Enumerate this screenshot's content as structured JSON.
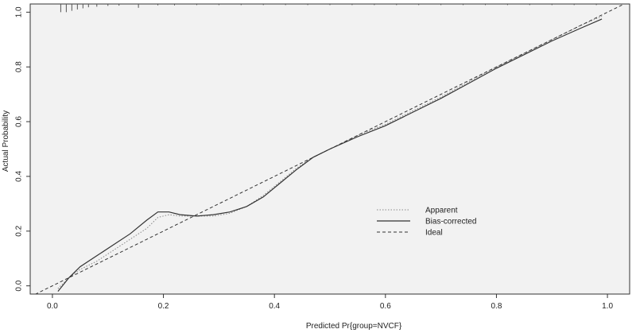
{
  "chart_data": {
    "type": "line",
    "title": "",
    "xlabel": "Predicted Pr{group=NVCF}",
    "ylabel": "Actual Probability",
    "xlim": [
      -0.04,
      1.04
    ],
    "ylim": [
      -0.03,
      1.03
    ],
    "x_ticks": [
      "0.0",
      "0.2",
      "0.4",
      "0.6",
      "0.8",
      "1.0"
    ],
    "y_ticks": [
      "0.0",
      "0.2",
      "0.4",
      "0.6",
      "0.8",
      "1.0"
    ],
    "grid": false,
    "background": "#f2f2f2",
    "legend_position": "center-right",
    "series": [
      {
        "name": "Apparent",
        "style": "dotted",
        "color": "#888888",
        "x": [
          0.01,
          0.03,
          0.05,
          0.08,
          0.11,
          0.14,
          0.17,
          0.19,
          0.21,
          0.23,
          0.26,
          0.29,
          0.32,
          0.35,
          0.38,
          0.41,
          0.44,
          0.47,
          0.5,
          0.55,
          0.6,
          0.65,
          0.7,
          0.75,
          0.8,
          0.85,
          0.9,
          0.95,
          0.99
        ],
        "y": [
          -0.01,
          0.03,
          0.06,
          0.09,
          0.13,
          0.17,
          0.21,
          0.25,
          0.26,
          0.255,
          0.255,
          0.255,
          0.265,
          0.29,
          0.33,
          0.38,
          0.43,
          0.47,
          0.5,
          0.55,
          0.59,
          0.64,
          0.69,
          0.745,
          0.8,
          0.85,
          0.9,
          0.95,
          0.985
        ]
      },
      {
        "name": "Bias-corrected",
        "style": "solid",
        "color": "#333333",
        "x": [
          0.01,
          0.03,
          0.05,
          0.08,
          0.11,
          0.14,
          0.17,
          0.19,
          0.21,
          0.23,
          0.26,
          0.29,
          0.32,
          0.35,
          0.38,
          0.41,
          0.44,
          0.47,
          0.5,
          0.55,
          0.6,
          0.65,
          0.7,
          0.75,
          0.8,
          0.85,
          0.9,
          0.95,
          0.99
        ],
        "y": [
          -0.02,
          0.03,
          0.07,
          0.11,
          0.15,
          0.19,
          0.24,
          0.27,
          0.27,
          0.26,
          0.255,
          0.26,
          0.27,
          0.29,
          0.325,
          0.375,
          0.425,
          0.47,
          0.5,
          0.545,
          0.585,
          0.635,
          0.685,
          0.74,
          0.795,
          0.845,
          0.895,
          0.94,
          0.975
        ]
      },
      {
        "name": "Ideal",
        "style": "dashed",
        "color": "#333333",
        "x": [
          -0.04,
          1.04
        ],
        "y": [
          -0.04,
          1.04
        ]
      }
    ],
    "rug_x": [
      0.015,
      0.025,
      0.035,
      0.045,
      0.055,
      0.065,
      0.08,
      0.1,
      0.12,
      0.155,
      0.19,
      0.22,
      0.26,
      0.3,
      0.34,
      0.38,
      0.42,
      0.46,
      0.5,
      0.54,
      0.58,
      0.62,
      0.66,
      0.7,
      0.74,
      0.78,
      0.82,
      0.86,
      0.9,
      0.94,
      0.98
    ],
    "rug_len": [
      0.03,
      0.03,
      0.025,
      0.02,
      0.016,
      0.012,
      0.01,
      0.007,
      0.006,
      0.014,
      0.005,
      0.005,
      0.004,
      0.004,
      0.004,
      0.004,
      0.004,
      0.004,
      0.004,
      0.004,
      0.004,
      0.004,
      0.004,
      0.004,
      0.004,
      0.004,
      0.004,
      0.004,
      0.004,
      0.004,
      0.004
    ]
  }
}
